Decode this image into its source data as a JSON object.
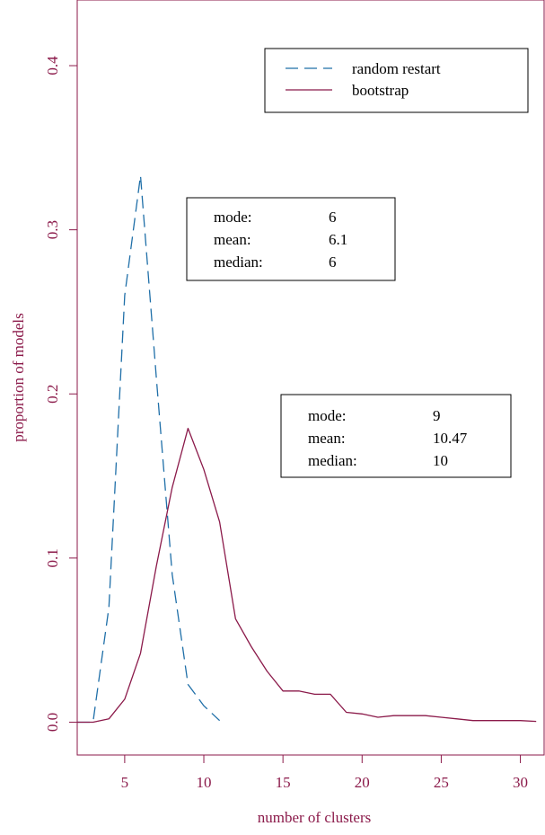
{
  "chart_data": {
    "type": "line",
    "xlabel": "number of clusters",
    "ylabel": "proportion of models",
    "xlim": [
      2,
      31.5
    ],
    "ylim": [
      -0.02,
      0.44
    ],
    "x_ticks": [
      "5",
      "10",
      "15",
      "20",
      "25",
      "30"
    ],
    "y_ticks": [
      "0.0",
      "0.1",
      "0.2",
      "0.3",
      "0.4"
    ],
    "axis_color": "#8b1a4a",
    "legend_position": "top-right",
    "series": [
      {
        "name": "random restart",
        "style": "dashed",
        "color": "#1f6fa8",
        "x": [
          2,
          3,
          4,
          5,
          6,
          7,
          8,
          9,
          10,
          11
        ],
        "y": [
          0.0,
          0.0,
          0.07,
          0.26,
          0.333,
          0.21,
          0.09,
          0.023,
          0.01,
          0.001
        ]
      },
      {
        "name": "bootstrap",
        "style": "solid",
        "color": "#8b1a4a",
        "x": [
          2,
          3,
          4,
          5,
          6,
          7,
          8,
          9,
          10,
          11,
          12,
          13,
          14,
          15,
          16,
          17,
          18,
          19,
          20,
          21,
          22,
          23,
          24,
          25,
          26,
          27,
          28,
          29,
          30,
          31
        ],
        "y": [
          0.0,
          0.0,
          0.002,
          0.014,
          0.042,
          0.095,
          0.143,
          0.179,
          0.154,
          0.122,
          0.063,
          0.046,
          0.031,
          0.019,
          0.019,
          0.017,
          0.017,
          0.006,
          0.005,
          0.003,
          0.004,
          0.004,
          0.004,
          0.003,
          0.002,
          0.001,
          0.001,
          0.001,
          0.001,
          0.0005
        ]
      }
    ],
    "annotations": [
      {
        "rows": [
          {
            "label": "mode:",
            "value": "6"
          },
          {
            "label": "mean:",
            "value": "6.1"
          },
          {
            "label": "median:",
            "value": "6"
          }
        ]
      },
      {
        "rows": [
          {
            "label": "mode:",
            "value": "9"
          },
          {
            "label": "mean:",
            "value": "10.47"
          },
          {
            "label": "median:",
            "value": "10"
          }
        ]
      }
    ]
  }
}
